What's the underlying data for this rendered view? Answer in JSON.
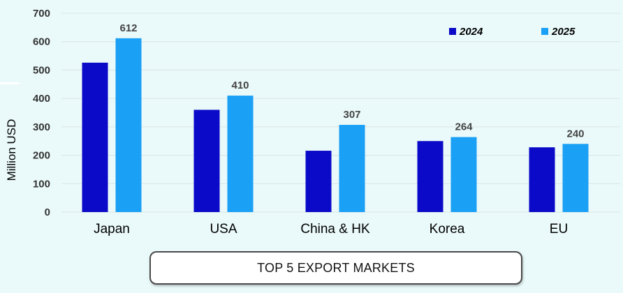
{
  "chart_data": {
    "type": "bar",
    "categories": [
      "Japan",
      "USA",
      "China & HK",
      "Korea",
      "EU"
    ],
    "series": [
      {
        "name": "2024",
        "values": [
          526,
          360,
          216,
          250,
          228
        ],
        "color": "#0a0ac8"
      },
      {
        "name": "2025",
        "values": [
          612,
          410,
          307,
          264,
          240
        ],
        "color": "#1aa0f5"
      }
    ],
    "data_labels": {
      "2025": [
        "612",
        "410",
        "307",
        "264",
        "240"
      ]
    },
    "ylabel": "Million USD",
    "ylim": [
      0,
      700
    ],
    "yticks": [
      0,
      100,
      200,
      300,
      400,
      500,
      600,
      700
    ],
    "grid": true,
    "legend_position": "top-right"
  },
  "caption": "TOP 5 EXPORT MARKETS",
  "colors": {
    "background": "#eaf9f9",
    "gridline": "#d9e6e6"
  }
}
